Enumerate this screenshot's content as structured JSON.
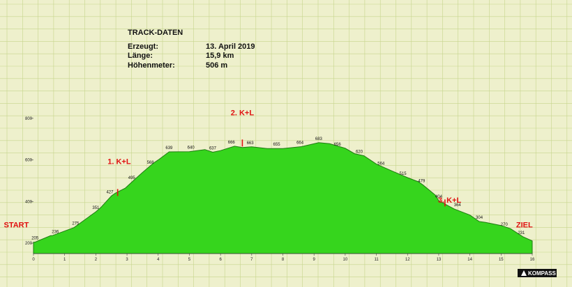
{
  "info": {
    "title": "TRACK-DATEN",
    "rows": [
      {
        "label": "Erzeugt:",
        "value": "13. April 2019"
      },
      {
        "label": "Länge:",
        "value": "15,9 km"
      },
      {
        "label": "Höhenmeter:",
        "value": "506 m"
      }
    ]
  },
  "logo": {
    "text": "KOMPASS"
  },
  "colors": {
    "background": "#eef0cc",
    "grid": "#c6d58d",
    "fill": "#36d51d",
    "line": "#1f7a12",
    "annotation": "#e01010"
  },
  "chart_data": {
    "type": "area",
    "xlim": [
      0,
      16
    ],
    "ylim": [
      150,
      900
    ],
    "xticks": [
      0,
      1,
      2,
      3,
      4,
      5,
      6,
      7,
      8,
      9,
      10,
      11,
      12,
      13,
      14,
      15,
      16
    ],
    "yticks": [
      200,
      400,
      600,
      800
    ],
    "grid": true,
    "x": [
      0,
      0.05,
      0.55,
      0.6,
      1.3,
      2.0,
      2.15,
      2.5,
      2.62,
      2.95,
      3.2,
      3.5,
      3.85,
      4.0,
      4.35,
      5.0,
      5.5,
      5.75,
      6.0,
      6.45,
      6.7,
      7.0,
      7.5,
      8.0,
      8.6,
      9.15,
      9.5,
      10.0,
      10.3,
      10.6,
      11.0,
      11.5,
      12.0,
      12.35,
      12.5,
      12.9,
      13.0,
      13.3,
      13.5,
      14.0,
      14.3,
      14.5,
      15.0,
      15.3,
      15.7,
      16.0
    ],
    "elevation": [
      205,
      205,
      236,
      236,
      275,
      351,
      370,
      427,
      440,
      465,
      500,
      540,
      585,
      600,
      639,
      640,
      650,
      637,
      645,
      666,
      660,
      663,
      655,
      655,
      664,
      683,
      678,
      656,
      630,
      620,
      580,
      547,
      515,
      495,
      479,
      430,
      404,
      380,
      364,
      335,
      304,
      300,
      285,
      270,
      231,
      211
    ],
    "point_labels": [
      {
        "x": 0.05,
        "y": 205,
        "text": "205"
      },
      {
        "x": 0.7,
        "y": 236,
        "text": "236"
      },
      {
        "x": 1.35,
        "y": 275,
        "text": "275"
      },
      {
        "x": 2.0,
        "y": 351,
        "text": "351"
      },
      {
        "x": 2.45,
        "y": 427,
        "text": "427"
      },
      {
        "x": 3.15,
        "y": 495,
        "text": "495"
      },
      {
        "x": 3.75,
        "y": 568,
        "text": "568"
      },
      {
        "x": 4.35,
        "y": 639,
        "text": "639"
      },
      {
        "x": 5.05,
        "y": 640,
        "text": "640"
      },
      {
        "x": 5.75,
        "y": 637,
        "text": "637"
      },
      {
        "x": 6.35,
        "y": 666,
        "text": "666"
      },
      {
        "x": 6.95,
        "y": 663,
        "text": "663"
      },
      {
        "x": 7.8,
        "y": 655,
        "text": "655"
      },
      {
        "x": 8.55,
        "y": 664,
        "text": "664"
      },
      {
        "x": 9.15,
        "y": 683,
        "text": "683"
      },
      {
        "x": 9.75,
        "y": 656,
        "text": "656"
      },
      {
        "x": 10.45,
        "y": 620,
        "text": "620"
      },
      {
        "x": 11.15,
        "y": 564,
        "text": "564"
      },
      {
        "x": 11.85,
        "y": 515,
        "text": "515"
      },
      {
        "x": 12.45,
        "y": 479,
        "text": "479"
      },
      {
        "x": 13.0,
        "y": 404,
        "text": "404"
      },
      {
        "x": 13.6,
        "y": 364,
        "text": "364"
      },
      {
        "x": 14.3,
        "y": 304,
        "text": "304"
      },
      {
        "x": 15.1,
        "y": 270,
        "text": "270"
      },
      {
        "x": 15.65,
        "y": 231,
        "text": "231"
      }
    ],
    "annotations": [
      {
        "x": -0.55,
        "y": 275,
        "text": "START",
        "marker": false
      },
      {
        "x": 2.75,
        "y": 580,
        "text": "1. K+L",
        "marker": true,
        "marker_x": 2.7,
        "marker_y": 430
      },
      {
        "x": 6.7,
        "y": 815,
        "text": "2. K+L",
        "marker": true,
        "marker_x": 6.7,
        "marker_y": 668
      },
      {
        "x": 13.35,
        "y": 395,
        "text": "3. K+L",
        "marker": true,
        "marker_x": 13.2,
        "marker_y": 380
      },
      {
        "x": 15.75,
        "y": 275,
        "text": "ZIEL",
        "marker": false
      }
    ]
  }
}
